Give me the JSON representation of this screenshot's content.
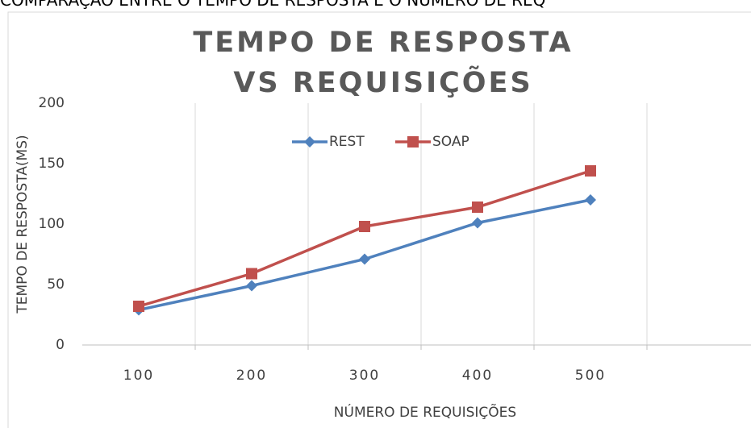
{
  "caption": "COMPARAÇÃO ENTRE O TEMPO DE RESPOSTA E O NÚMERO DE REQ",
  "chart_data": {
    "type": "line",
    "title": "TEMPO DE RESPOSTA VS REQUISIÇÕES",
    "x_label": "NÚMERO DE REQUISIÇÕES",
    "y_label": "TEMPO DE RESPOSTA(MS)",
    "categories": [
      "100",
      "200",
      "300",
      "400",
      "500",
      null
    ],
    "series": [
      {
        "name": "REST",
        "color": "#4f81bd",
        "marker": "diamond",
        "values": [
          29,
          49,
          71,
          101,
          120,
          null
        ]
      },
      {
        "name": "SOAP",
        "color": "#c0504d",
        "marker": "square",
        "values": [
          32,
          59,
          98,
          114,
          144,
          null
        ]
      }
    ],
    "ylim": [
      0,
      200
    ],
    "yticks": [
      0,
      50,
      100,
      150,
      200
    ],
    "grid": "x",
    "legend": "top"
  }
}
